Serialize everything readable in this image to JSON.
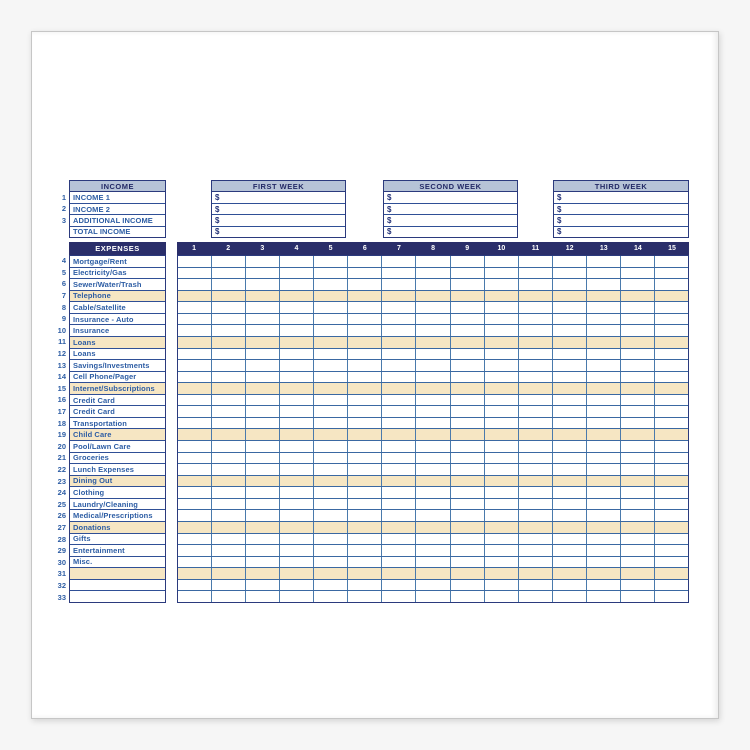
{
  "colors": {
    "page_bg": "#f6f6f6",
    "card_bg": "#ffffff",
    "navy_bar": "#2a2e6a",
    "navy_border": "#2b3a7d",
    "header_bg": "#b6c3d7",
    "grid_line": "#4a7aac",
    "shade": "#f6e6c3",
    "text_blue": "#2d5da4",
    "bar_text": "#ffffff"
  },
  "income": {
    "header": "INCOME",
    "rows": [
      {
        "num": "1",
        "label": "INCOME 1"
      },
      {
        "num": "2",
        "label": "INCOME 2"
      },
      {
        "num": "3",
        "label": "ADDITIONAL INCOME"
      },
      {
        "num": "",
        "label": "TOTAL INCOME"
      }
    ]
  },
  "weeks": [
    {
      "header": "FIRST WEEK",
      "rows": [
        "$",
        "$",
        "$",
        "$"
      ]
    },
    {
      "header": "SECOND WEEK",
      "rows": [
        "$",
        "$",
        "$",
        "$"
      ]
    },
    {
      "header": "THIRD WEEK",
      "rows": [
        "$",
        "$",
        "$",
        "$"
      ]
    }
  ],
  "expenses": {
    "header": "EXPENSES",
    "day_columns": [
      "1",
      "2",
      "3",
      "4",
      "5",
      "6",
      "7",
      "8",
      "9",
      "10",
      "11",
      "12",
      "13",
      "14",
      "15"
    ],
    "rows": [
      {
        "num": "4",
        "label": "Mortgage/Rent",
        "shaded": false
      },
      {
        "num": "5",
        "label": "Electricity/Gas",
        "shaded": false
      },
      {
        "num": "6",
        "label": "Sewer/Water/Trash",
        "shaded": false
      },
      {
        "num": "7",
        "label": "Telephone",
        "shaded": true
      },
      {
        "num": "8",
        "label": "Cable/Satellite",
        "shaded": false
      },
      {
        "num": "9",
        "label": "Insurance - Auto",
        "shaded": false
      },
      {
        "num": "10",
        "label": "Insurance",
        "shaded": false
      },
      {
        "num": "11",
        "label": "Loans",
        "shaded": true
      },
      {
        "num": "12",
        "label": "Loans",
        "shaded": false
      },
      {
        "num": "13",
        "label": "Savings/Investments",
        "shaded": false
      },
      {
        "num": "14",
        "label": "Cell Phone/Pager",
        "shaded": false
      },
      {
        "num": "15",
        "label": "Internet/Subscriptions",
        "shaded": true
      },
      {
        "num": "16",
        "label": "Credit Card",
        "shaded": false
      },
      {
        "num": "17",
        "label": "Credit Card",
        "shaded": false
      },
      {
        "num": "18",
        "label": "Transportation",
        "shaded": false
      },
      {
        "num": "19",
        "label": "Child Care",
        "shaded": true
      },
      {
        "num": "20",
        "label": "Pool/Lawn Care",
        "shaded": false
      },
      {
        "num": "21",
        "label": "Groceries",
        "shaded": false
      },
      {
        "num": "22",
        "label": "Lunch Expenses",
        "shaded": false
      },
      {
        "num": "23",
        "label": "Dining Out",
        "shaded": true
      },
      {
        "num": "24",
        "label": "Clothing",
        "shaded": false
      },
      {
        "num": "25",
        "label": "Laundry/Cleaning",
        "shaded": false
      },
      {
        "num": "26",
        "label": "Medical/Prescriptions",
        "shaded": false
      },
      {
        "num": "27",
        "label": "Donations",
        "shaded": true
      },
      {
        "num": "28",
        "label": "Gifts",
        "shaded": false
      },
      {
        "num": "29",
        "label": "Entertainment",
        "shaded": false
      },
      {
        "num": "30",
        "label": "Misc.",
        "shaded": false
      },
      {
        "num": "31",
        "label": "",
        "shaded": true
      },
      {
        "num": "32",
        "label": "",
        "shaded": false
      },
      {
        "num": "33",
        "label": "",
        "shaded": false
      }
    ]
  }
}
